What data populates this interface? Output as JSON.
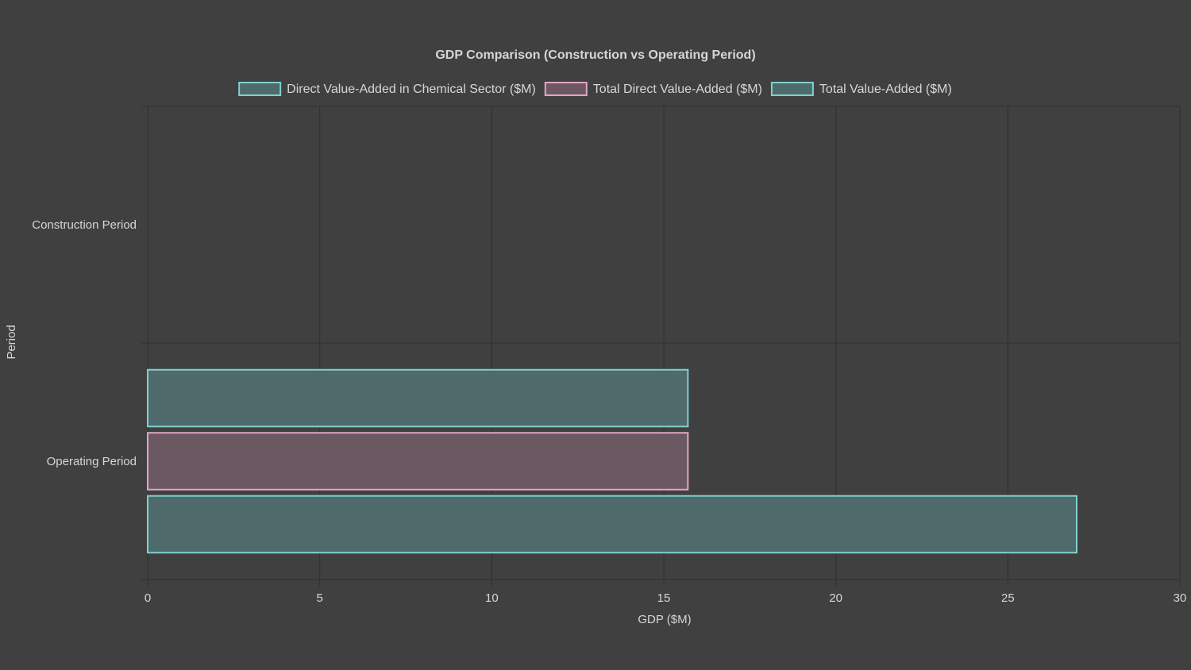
{
  "chart_data": {
    "type": "bar",
    "orientation": "horizontal",
    "title": "GDP Comparison (Construction vs Operating Period)",
    "xlabel": "GDP ($M)",
    "ylabel": "Period",
    "categories": [
      "Construction Period",
      "Operating Period"
    ],
    "xlim": [
      0,
      30
    ],
    "xticks": [
      "0",
      "5",
      "10",
      "15",
      "20",
      "25",
      "30"
    ],
    "grid": true,
    "legend_position": "top",
    "series": [
      {
        "name": "Direct Value-Added in Chemical Sector ($M)",
        "values": [
          0,
          15.7
        ],
        "fill": "#4f6a6b",
        "stroke": "#7fd1cf"
      },
      {
        "name": "Total Direct Value-Added ($M)",
        "values": [
          0,
          15.7
        ],
        "fill": "#6b5861",
        "stroke": "#e0a6c6"
      },
      {
        "name": "Total Value-Added ($M)",
        "values": [
          0,
          27.0
        ],
        "fill": "#4f6a6b",
        "stroke": "#7fd1cf"
      }
    ]
  }
}
